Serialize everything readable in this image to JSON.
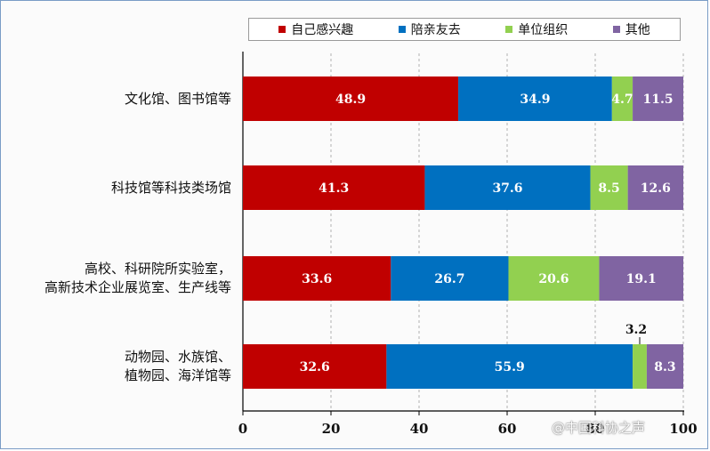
{
  "chart_data": {
    "type": "bar",
    "orientation": "horizontal",
    "stacked": true,
    "categories": [
      [
        "文化馆、图书馆等"
      ],
      [
        "科技馆等科技类场馆"
      ],
      [
        "高校、科研院所实验室，",
        "高新技术企业展览室、生产线等"
      ],
      [
        "动物园、水族馆、",
        "植物园、海洋馆等"
      ]
    ],
    "series": [
      {
        "name": "自己感兴趣",
        "color": "#c00000",
        "values": [
          48.9,
          41.3,
          33.6,
          32.6
        ]
      },
      {
        "name": "陪亲友去",
        "color": "#0070c0",
        "values": [
          34.9,
          37.6,
          26.7,
          55.9
        ]
      },
      {
        "name": "单位组织",
        "color": "#92d050",
        "values": [
          4.7,
          8.5,
          20.6,
          3.2
        ]
      },
      {
        "name": "其他",
        "color": "#8064a2",
        "values": [
          11.5,
          12.6,
          19.1,
          8.3
        ]
      }
    ],
    "xlim": [
      0,
      100
    ],
    "xticks": [
      "0",
      "20",
      "40",
      "60",
      "80",
      "100"
    ],
    "grid": "vertical-dashed",
    "legend_position": "top"
  },
  "watermark": "@中国科协之声"
}
